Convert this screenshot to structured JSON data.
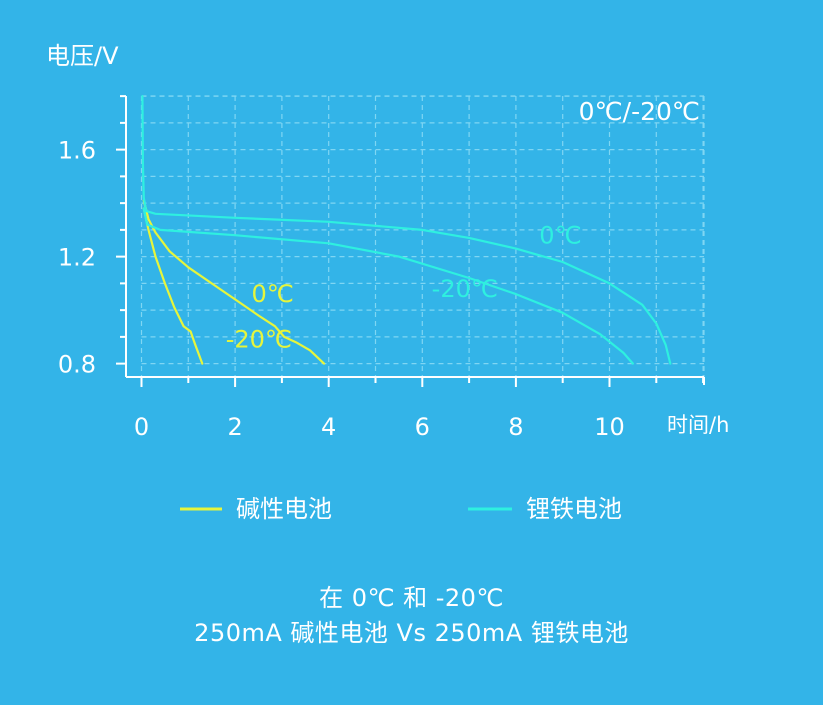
{
  "chart_data": {
    "type": "line",
    "title": "",
    "annotation": "0℃/-20℃",
    "xlabel": "时间/h",
    "ylabel": "电压/V",
    "xlim": [
      0,
      12
    ],
    "ylim": [
      0.75,
      1.8
    ],
    "x_ticks": [
      0,
      2,
      4,
      6,
      8,
      10
    ],
    "y_ticks": [
      0.8,
      1.2,
      1.6
    ],
    "grid": true,
    "legend_position": "bottom",
    "legend": [
      {
        "label": "碱性电池",
        "color": "#e6f53c"
      },
      {
        "label": "锂铁电池",
        "color": "#2ef0e0"
      }
    ],
    "series": [
      {
        "name": "碱性电池 0℃",
        "group": "碱性电池",
        "label": "0℃",
        "label_at": [
          2.35,
          1.03
        ],
        "color": "#e6f53c",
        "points": [
          [
            0.05,
            1.41
          ],
          [
            0.15,
            1.34
          ],
          [
            0.3,
            1.29
          ],
          [
            0.6,
            1.22
          ],
          [
            1.0,
            1.16
          ],
          [
            1.5,
            1.1
          ],
          [
            2.0,
            1.04
          ],
          [
            2.5,
            0.98
          ],
          [
            2.85,
            0.94
          ],
          [
            3.05,
            0.9
          ],
          [
            3.3,
            0.88
          ],
          [
            3.6,
            0.85
          ],
          [
            3.9,
            0.8
          ]
        ]
      },
      {
        "name": "碱性电池 -20℃",
        "group": "碱性电池",
        "label": "-20℃",
        "label_at": [
          1.8,
          0.86
        ],
        "color": "#e6f53c",
        "points": [
          [
            0.05,
            1.38
          ],
          [
            0.15,
            1.3
          ],
          [
            0.3,
            1.2
          ],
          [
            0.5,
            1.1
          ],
          [
            0.7,
            1.01
          ],
          [
            0.9,
            0.94
          ],
          [
            1.05,
            0.92
          ],
          [
            1.15,
            0.87
          ],
          [
            1.3,
            0.8
          ]
        ]
      },
      {
        "name": "锂铁电池 0℃",
        "group": "锂铁电池",
        "label": "0℃",
        "label_at": [
          8.5,
          1.25
        ],
        "color": "#2ef0e0",
        "points": [
          [
            0.02,
            1.8
          ],
          [
            0.03,
            1.55
          ],
          [
            0.05,
            1.42
          ],
          [
            0.1,
            1.37
          ],
          [
            0.3,
            1.36
          ],
          [
            2,
            1.345
          ],
          [
            4,
            1.33
          ],
          [
            6,
            1.3
          ],
          [
            7,
            1.27
          ],
          [
            8,
            1.23
          ],
          [
            9,
            1.18
          ],
          [
            10,
            1.1
          ],
          [
            10.7,
            1.02
          ],
          [
            11.0,
            0.95
          ],
          [
            11.2,
            0.87
          ],
          [
            11.3,
            0.8
          ]
        ]
      },
      {
        "name": "锂铁电池 -20℃",
        "group": "锂铁电池",
        "label": "-20℃",
        "label_at": [
          6.2,
          1.05
        ],
        "color": "#2ef0e0",
        "points": [
          [
            0.05,
            1.38
          ],
          [
            0.12,
            1.32
          ],
          [
            0.4,
            1.3
          ],
          [
            2,
            1.28
          ],
          [
            4,
            1.25
          ],
          [
            5.5,
            1.2
          ],
          [
            7,
            1.12
          ],
          [
            8,
            1.06
          ],
          [
            9,
            0.99
          ],
          [
            9.8,
            0.91
          ],
          [
            10.3,
            0.84
          ],
          [
            10.5,
            0.8
          ]
        ]
      }
    ]
  },
  "caption": {
    "line1": "在 0℃ 和 -20℃",
    "line2": "250mA 碱性电池 Vs 250mA 锂铁电池"
  }
}
